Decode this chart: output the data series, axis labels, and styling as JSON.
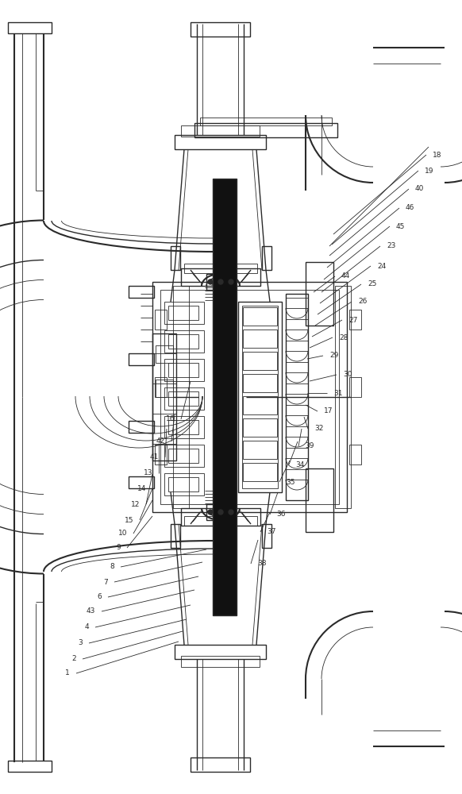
{
  "bg_color": "#ffffff",
  "line_color": "#2a2a2a",
  "lw1": 0.6,
  "lw2": 1.0,
  "lw3": 1.5,
  "fig_width": 5.82,
  "fig_height": 10.0,
  "dpi": 100
}
